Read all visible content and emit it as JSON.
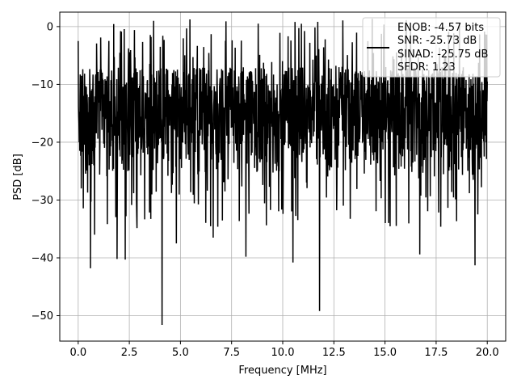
{
  "chart_data": {
    "type": "line",
    "title": "",
    "xlabel": "Frequency [MHz]",
    "ylabel": "PSD [dB]",
    "xlim": [
      -0.9,
      20.9
    ],
    "ylim": [
      -54.4,
      2.5
    ],
    "xticks": [
      0.0,
      2.5,
      5.0,
      7.5,
      10.0,
      12.5,
      15.0,
      17.5,
      20.0
    ],
    "xtick_labels": [
      "0.0",
      "2.5",
      "5.0",
      "7.5",
      "10.0",
      "12.5",
      "15.0",
      "17.5",
      "20.0"
    ],
    "yticks": [
      0,
      -10,
      -20,
      -30,
      -40,
      -50
    ],
    "ytick_labels": [
      "0",
      "−10",
      "−20",
      "−30",
      "−40",
      "−50"
    ],
    "grid": true,
    "legend_position": "top-right",
    "legend_entries": [
      "ENOB: -4.57 bits",
      "SNR: -25.73 dB",
      "SINAD: -25.75 dB",
      "SFDR: 1.23"
    ],
    "colors": {
      "series": "#000000",
      "grid": "#b0b0b0",
      "legend_border": "#cccccc"
    },
    "series": [
      {
        "style": "noise-psd",
        "x_start": 0.0,
        "x_end": 20.0,
        "approx_points": 1600,
        "band_top_db": -7,
        "band_bottom_db": -26,
        "peak_max_db": 1.5,
        "notable_points": [
          {
            "x": 0.0,
            "y": -2.5
          },
          {
            "x": 0.15,
            "y": -28
          },
          {
            "x": 0.6,
            "y": -41.8
          },
          {
            "x": 0.8,
            "y": -36
          },
          {
            "x": 1.9,
            "y": -40.2
          },
          {
            "x": 2.3,
            "y": -40.3
          },
          {
            "x": 4.1,
            "y": -51.6
          },
          {
            "x": 4.8,
            "y": -37.5
          },
          {
            "x": 6.6,
            "y": -36.5
          },
          {
            "x": 8.2,
            "y": -39.8
          },
          {
            "x": 10.5,
            "y": -40.8
          },
          {
            "x": 11.8,
            "y": -49.2
          },
          {
            "x": 16.7,
            "y": -39.4
          },
          {
            "x": 19.4,
            "y": -41.3
          },
          {
            "x": 10.6,
            "y": 0.8
          },
          {
            "x": 8.8,
            "y": 0.5
          }
        ]
      }
    ]
  }
}
